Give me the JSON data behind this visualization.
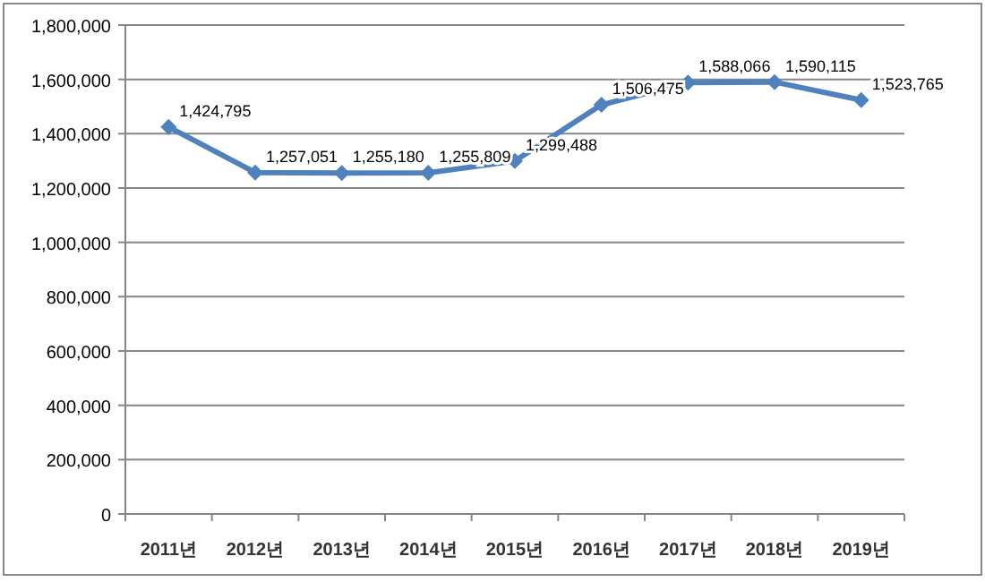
{
  "chart_data": {
    "type": "line",
    "categories": [
      "2011년",
      "2012년",
      "2013년",
      "2014년",
      "2015년",
      "2016년",
      "2017년",
      "2018년",
      "2019년"
    ],
    "series": [
      {
        "color": "#4f81bd",
        "values": [
          1424795,
          1257051,
          1255180,
          1255809,
          1299488,
          1506475,
          1588066,
          1590115,
          1523765
        ],
        "value_labels": [
          "1,424,795",
          "1,257,051",
          "1,255,180",
          "1,255,809",
          "1,299,488",
          "1,506,475",
          "1,588,066",
          "1,590,115",
          "1,523,765"
        ]
      }
    ],
    "ylim": [
      0,
      1800000
    ],
    "yticks": [
      {
        "value": 0,
        "label": "0"
      },
      {
        "value": 200000,
        "label": "200,000"
      },
      {
        "value": 400000,
        "label": "400,000"
      },
      {
        "value": 600000,
        "label": "600,000"
      },
      {
        "value": 800000,
        "label": "800,000"
      },
      {
        "value": 1000000,
        "label": "1,000,000"
      },
      {
        "value": 1200000,
        "label": "1,200,000"
      },
      {
        "value": 1400000,
        "label": "1,400,000"
      },
      {
        "value": 1600000,
        "label": "1,600,000"
      },
      {
        "value": 1800000,
        "label": "1,800,000"
      }
    ],
    "grid": "y",
    "marker": "diamond",
    "line_style": "solid"
  }
}
